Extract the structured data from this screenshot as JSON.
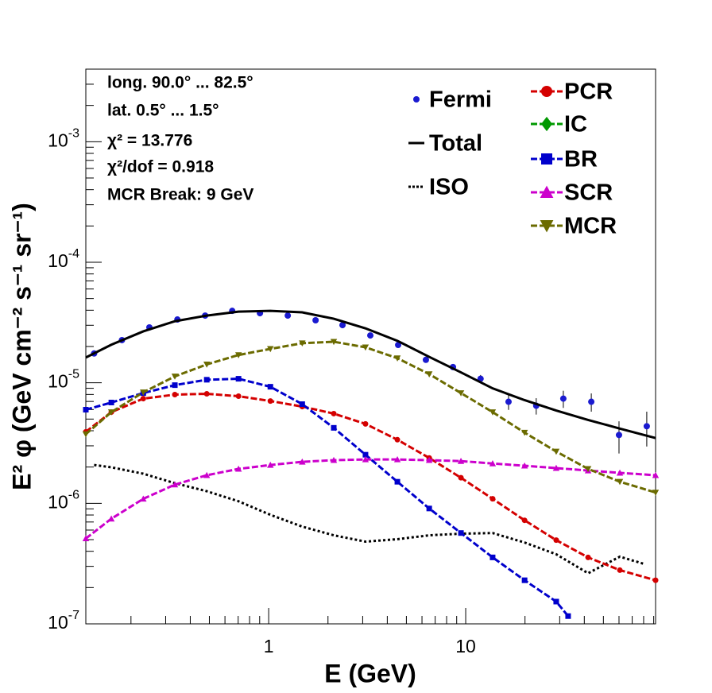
{
  "chart_data": {
    "type": "line",
    "x_label": "E (GeV)",
    "y_label": "E² φ (GeV cm⁻² s⁻¹ sr⁻¹)",
    "xscale": "log",
    "yscale": "log",
    "xlim": [
      0.118,
      92
    ],
    "ylim": [
      1e-07,
      0.004
    ],
    "xticks": [
      1,
      10
    ],
    "xminorticks": [
      0.2,
      0.3,
      0.4,
      0.5,
      0.6,
      0.7,
      0.8,
      0.9,
      2,
      3,
      4,
      5,
      6,
      7,
      8,
      9,
      20,
      30,
      40,
      50,
      60,
      70,
      80,
      90
    ],
    "yticks": [
      {
        "value": 1e-07,
        "label": "10",
        "exponent": "-7"
      },
      {
        "value": 1e-06,
        "label": "10",
        "exponent": "-6"
      },
      {
        "value": 1e-05,
        "label": "10",
        "exponent": "-5"
      },
      {
        "value": 0.0001,
        "label": "10",
        "exponent": "-4"
      },
      {
        "value": 0.001,
        "label": "10",
        "exponent": "-3"
      }
    ],
    "yminorticks": [
      2e-07,
      3e-07,
      4e-07,
      5e-07,
      6e-07,
      7e-07,
      8e-07,
      9e-07,
      2e-06,
      3e-06,
      4e-06,
      5e-06,
      6e-06,
      7e-06,
      8e-06,
      9e-06,
      2e-05,
      3e-05,
      4e-05,
      5e-05,
      6e-05,
      7e-05,
      8e-05,
      9e-05,
      0.0002,
      0.0003,
      0.0004,
      0.0005,
      0.0006,
      0.0007,
      0.0008,
      0.0009,
      0.002,
      0.003
    ],
    "annotations": [
      "long. 90.0° ... 82.5°",
      "lat. 0.5° ... 1.5°",
      "χ² = 13.776",
      "χ²/dof = 0.918",
      "MCR Break:  9 GeV"
    ],
    "series": [
      {
        "name": "Fermi",
        "color": "#1a1ad0",
        "marker": "circle",
        "line": "none",
        "x": [
          0.13,
          0.18,
          0.248,
          0.344,
          0.476,
          0.653,
          0.903,
          1.25,
          1.73,
          2.37,
          3.28,
          4.54,
          6.28,
          8.62,
          11.9,
          16.5,
          22.8,
          31.3,
          43.4,
          60.0,
          83.0
        ],
        "values": [
          1.75e-05,
          2.26e-05,
          2.88e-05,
          3.35e-05,
          3.61e-05,
          3.95e-05,
          3.78e-05,
          3.61e-05,
          3.3e-05,
          3.01e-05,
          2.47e-05,
          2.06e-05,
          1.55e-05,
          1.35e-05,
          1.08e-05,
          6.96e-06,
          6.45e-06,
          7.39e-06,
          6.96e-06,
          3.69e-06,
          4.36e-06
        ],
        "errors": [
          4e-07,
          5e-07,
          6e-07,
          7e-07,
          7e-07,
          8e-07,
          8e-07,
          7e-07,
          7e-07,
          6e-07,
          5e-07,
          5e-07,
          4e-07,
          4e-07,
          8e-07,
          1e-06,
          1e-06,
          1.2e-06,
          1.2e-06,
          1.1e-06,
          1.4e-06
        ]
      },
      {
        "name": "Total",
        "color": "#000000",
        "marker": "none",
        "line": "solid",
        "x": [
          0.118,
          0.159,
          0.231,
          0.334,
          0.485,
          0.703,
          1.02,
          1.48,
          2.14,
          3.1,
          4.5,
          6.53,
          9.46,
          13.7,
          19.9,
          28.8,
          41.8,
          60.6,
          92.0
        ],
        "values": [
          1.62e-05,
          2.07e-05,
          2.67e-05,
          3.24e-05,
          3.61e-05,
          3.89e-05,
          3.95e-05,
          3.84e-05,
          3.4e-05,
          2.83e-05,
          2.23e-05,
          1.64e-05,
          1.22e-05,
          8.99e-06,
          7.18e-06,
          5.89e-06,
          4.92e-06,
          4.17e-06,
          3.48e-06
        ]
      },
      {
        "name": "ISO",
        "color": "#000000",
        "marker": "none",
        "line": "dotted",
        "x": [
          0.13,
          0.159,
          0.231,
          0.334,
          0.485,
          0.703,
          1.02,
          1.48,
          2.14,
          3.1,
          4.5,
          6.53,
          9.46,
          13.7,
          19.9,
          28.8,
          41.8,
          60.6,
          80.0
        ],
        "values": [
          2.08e-06,
          1.99e-06,
          1.76e-06,
          1.47e-06,
          1.26e-06,
          1.04e-06,
          8.03e-07,
          6.41e-07,
          5.43e-07,
          4.81e-07,
          5.04e-07,
          5.43e-07,
          5.6e-07,
          5.67e-07,
          4.73e-07,
          3.78e-07,
          2.63e-07,
          3.61e-07,
          3.15e-07
        ]
      },
      {
        "name": "PCR",
        "color": "#d40000",
        "marker": "circle",
        "line": "dashed",
        "x": [
          0.118,
          0.159,
          0.231,
          0.334,
          0.485,
          0.703,
          1.02,
          1.48,
          2.14,
          3.1,
          4.5,
          6.53,
          9.46,
          13.7,
          19.9,
          28.8,
          41.8,
          60.6,
          92.0
        ],
        "values": [
          3.92e-06,
          5.71e-06,
          7.39e-06,
          7.98e-06,
          8.1e-06,
          7.74e-06,
          7.06e-06,
          6.35e-06,
          5.55e-06,
          4.56e-06,
          3.37e-06,
          2.38e-06,
          1.63e-06,
          1.09e-06,
          7.23e-07,
          4.95e-07,
          3.56e-07,
          2.79e-07,
          2.3e-07
        ]
      },
      {
        "name": "IC",
        "color": "#009900",
        "marker": "diamond",
        "line": "dashed",
        "x": [],
        "values": []
      },
      {
        "name": "BR",
        "color": "#0000cc",
        "marker": "square",
        "line": "dashed",
        "x": [
          0.118,
          0.159,
          0.231,
          0.334,
          0.485,
          0.703,
          1.02,
          1.48,
          2.14,
          3.1,
          4.5,
          6.53,
          9.46,
          13.7,
          19.9,
          28.8,
          33.1
        ],
        "values": [
          5.98e-06,
          6.86e-06,
          8.22e-06,
          9.56e-06,
          1.06e-05,
          1.08e-05,
          9.27e-06,
          6.65e-06,
          4.23e-06,
          2.53e-06,
          1.51e-06,
          9.06e-07,
          5.67e-07,
          3.56e-07,
          2.3e-07,
          1.53e-07,
          1.16e-07
        ]
      },
      {
        "name": "SCR",
        "color": "#cc00cc",
        "marker": "triangle",
        "line": "dashed",
        "x": [
          0.118,
          0.159,
          0.231,
          0.334,
          0.485,
          0.703,
          1.02,
          1.48,
          2.14,
          3.1,
          4.5,
          6.53,
          9.46,
          13.7,
          19.9,
          28.8,
          41.8,
          60.6,
          92.0
        ],
        "values": [
          5.11e-07,
          7.45e-07,
          1.09e-06,
          1.43e-06,
          1.71e-06,
          1.93e-06,
          2.08e-06,
          2.21e-06,
          2.28e-06,
          2.31e-06,
          2.31e-06,
          2.28e-06,
          2.24e-06,
          2.14e-06,
          2.05e-06,
          1.96e-06,
          1.87e-06,
          1.79e-06,
          1.71e-06
        ]
      },
      {
        "name": "MCR",
        "color": "#6b6b00",
        "marker": "triangle-down",
        "line": "dashed",
        "x": [
          0.118,
          0.159,
          0.231,
          0.334,
          0.485,
          0.703,
          1.02,
          1.48,
          2.14,
          3.1,
          4.5,
          6.53,
          9.46,
          13.7,
          19.9,
          28.8,
          41.8,
          60.6,
          92.0
        ],
        "values": [
          3.75e-06,
          5.71e-06,
          8.34e-06,
          1.13e-05,
          1.42e-05,
          1.7e-05,
          1.91e-05,
          2.13e-05,
          2.19e-05,
          1.97e-05,
          1.6e-05,
          1.18e-05,
          8.22e-06,
          5.71e-06,
          3.86e-06,
          2.69e-06,
          1.93e-06,
          1.51e-06,
          1.23e-06
        ]
      }
    ]
  }
}
